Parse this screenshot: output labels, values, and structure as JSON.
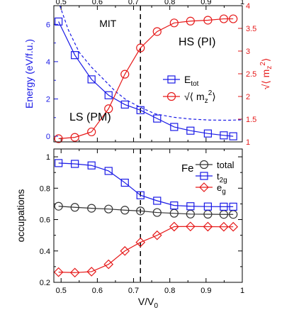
{
  "chart_data": [
    {
      "panel": "top",
      "type": "line",
      "xlim": [
        0.48,
        1.0
      ],
      "x_ticks_top": [
        "0.5",
        "0.6",
        "0.7",
        "0.8",
        "0.9",
        "1"
      ],
      "ylim_left": [
        -0.3,
        7.0
      ],
      "ylim_right": [
        1.0,
        4.0
      ],
      "y_ticks_left": [
        "0",
        "2",
        "4",
        "6"
      ],
      "y_ticks_right": [
        "1",
        "1.5",
        "2",
        "2.5",
        "3",
        "3.5",
        "4"
      ],
      "ylabel_left": "Energy (eV/f.u.)",
      "ylabel_right": "√⟨ m_z² ⟩",
      "colors": {
        "energy": "#1a1ae6",
        "moment": "#e61a1a"
      },
      "annotations": {
        "mit": "MIT",
        "mit_x": 0.719,
        "hs": "HS (PI)",
        "ls": "LS (PM)"
      },
      "legend": {
        "placement": "center-right",
        "entries": [
          {
            "main": "E",
            "sub": "tot",
            "marker": "square",
            "color": "#1a1ae6"
          },
          {
            "main": "√⟨ m",
            "sub": "z",
            "sup": "2",
            "tail": "⟩",
            "marker": "circle",
            "color": "#e61a1a"
          }
        ]
      },
      "series": [
        {
          "name": "E_tot",
          "axis": "left",
          "marker": "square",
          "style": "solid",
          "x": [
            0.493,
            0.538,
            0.584,
            0.631,
            0.676,
            0.719,
            0.765,
            0.812,
            0.857,
            0.905,
            0.949,
            0.975
          ],
          "y": [
            6.15,
            4.35,
            3.05,
            2.2,
            1.7,
            1.4,
            0.95,
            0.5,
            0.3,
            0.15,
            0.05,
            0.0
          ]
        },
        {
          "name": "E_fit",
          "axis": "left",
          "marker": "none",
          "style": "dashed",
          "x": [
            0.493,
            0.52,
            0.55,
            0.584,
            0.62,
            0.65,
            0.68,
            0.719,
            0.76,
            0.81,
            0.86,
            0.91,
            0.96,
            1.0
          ],
          "y": [
            7.2,
            5.7,
            4.5,
            3.7,
            3.0,
            2.4,
            1.95,
            1.55,
            1.2,
            1.02,
            0.92,
            0.87,
            0.86,
            0.88
          ]
        },
        {
          "name": "moment",
          "axis": "right",
          "marker": "circle",
          "style": "solid",
          "x": [
            0.493,
            0.538,
            0.584,
            0.631,
            0.676,
            0.719,
            0.765,
            0.812,
            0.857,
            0.905,
            0.949,
            0.975
          ],
          "y": [
            1.07,
            1.1,
            1.22,
            1.73,
            2.49,
            3.07,
            3.43,
            3.62,
            3.66,
            3.68,
            3.71,
            3.71
          ]
        }
      ]
    },
    {
      "panel": "bottom",
      "type": "line",
      "xlim": [
        0.48,
        1.0
      ],
      "x_ticks": [
        "0.5",
        "0.6",
        "0.7",
        "0.8",
        "0.9",
        "1"
      ],
      "ylim": [
        0.2,
        1.05
      ],
      "y_ticks": [
        "0.2",
        "0.4",
        "0.6",
        "0.8",
        "1"
      ],
      "xlabel": "V/V",
      "xlabel_sub": "0",
      "ylabel": "occupations",
      "colors": {
        "total": "#333333",
        "t2g": "#1a1ae6",
        "eg": "#e61a1a"
      },
      "annotations": {
        "fe": "Fe",
        "mit_x": 0.719
      },
      "legend": {
        "placement": "top-right",
        "entries": [
          {
            "main": "total",
            "sub": "",
            "marker": "circle",
            "color": "#333333"
          },
          {
            "main": "t",
            "sub": "2g",
            "marker": "square",
            "color": "#1a1ae6"
          },
          {
            "main": "e",
            "sub": "g",
            "marker": "diamond",
            "color": "#e61a1a"
          }
        ]
      },
      "series": [
        {
          "name": "total",
          "marker": "circle",
          "x": [
            0.493,
            0.538,
            0.584,
            0.631,
            0.676,
            0.719,
            0.765,
            0.812,
            0.857,
            0.905,
            0.949,
            0.975
          ],
          "y": [
            0.685,
            0.678,
            0.672,
            0.667,
            0.66,
            0.655,
            0.645,
            0.64,
            0.635,
            0.634,
            0.633,
            0.633
          ]
        },
        {
          "name": "t2g",
          "marker": "square",
          "x": [
            0.493,
            0.538,
            0.584,
            0.631,
            0.676,
            0.719,
            0.765,
            0.812,
            0.857,
            0.905,
            0.949,
            0.975
          ],
          "y": [
            0.96,
            0.955,
            0.945,
            0.91,
            0.835,
            0.755,
            0.72,
            0.69,
            0.685,
            0.683,
            0.682,
            0.682
          ]
        },
        {
          "name": "eg",
          "marker": "diamond",
          "x": [
            0.493,
            0.538,
            0.584,
            0.631,
            0.676,
            0.719,
            0.765,
            0.812,
            0.857,
            0.905,
            0.949,
            0.975
          ],
          "y": [
            0.265,
            0.262,
            0.268,
            0.315,
            0.4,
            0.455,
            0.5,
            0.555,
            0.556,
            0.555,
            0.554,
            0.554
          ]
        }
      ]
    }
  ]
}
